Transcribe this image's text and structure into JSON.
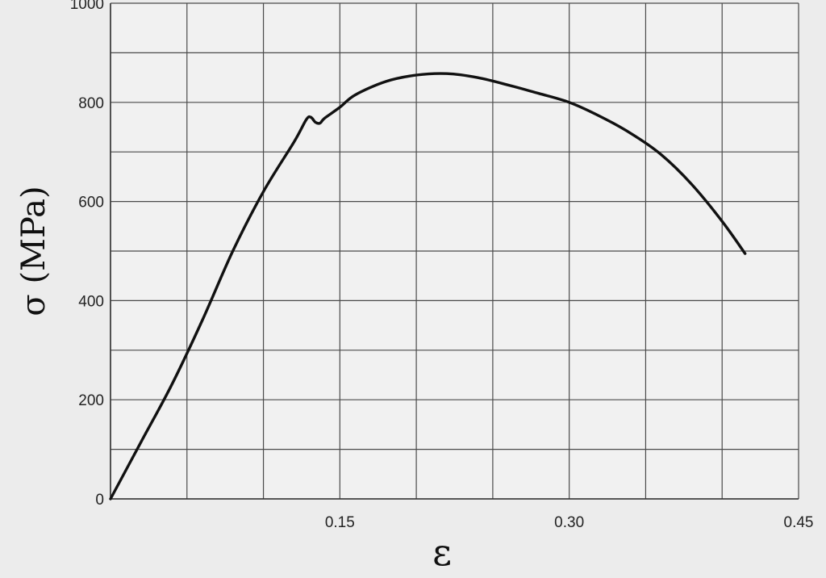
{
  "chart_data": {
    "type": "line",
    "title": "",
    "xlabel": "ε",
    "ylabel": "σ  (MPa)",
    "xlim": [
      0,
      0.45
    ],
    "ylim": [
      0,
      1000
    ],
    "xticks": [
      0.15,
      0.3,
      0.45
    ],
    "xtick_labels": [
      "0.15",
      "0.30",
      "0.45"
    ],
    "yticks": [
      0,
      200,
      400,
      600,
      800,
      1000
    ],
    "ytick_labels": [
      "0",
      "200",
      "400",
      "600",
      "800",
      "1000"
    ],
    "grid": true,
    "x_gridlines": [
      0,
      0.05,
      0.1,
      0.15,
      0.2,
      0.25,
      0.3,
      0.35,
      0.4,
      0.45
    ],
    "y_gridlines": [
      0,
      100,
      200,
      300,
      400,
      500,
      600,
      700,
      800,
      900,
      1000
    ],
    "line_color": "#111111",
    "series": [
      {
        "x": [
          0,
          0.02,
          0.04,
          0.06,
          0.08,
          0.1,
          0.12,
          0.128,
          0.131,
          0.134,
          0.137,
          0.14,
          0.15,
          0.16,
          0.18,
          0.2,
          0.22,
          0.24,
          0.26,
          0.28,
          0.3,
          0.32,
          0.34,
          0.36,
          0.38,
          0.4,
          0.415
        ],
        "y": [
          0,
          115,
          230,
          360,
          500,
          620,
          720,
          765,
          770,
          760,
          758,
          768,
          790,
          815,
          842,
          855,
          858,
          850,
          835,
          818,
          800,
          772,
          738,
          695,
          635,
          560,
          495
        ]
      }
    ]
  }
}
